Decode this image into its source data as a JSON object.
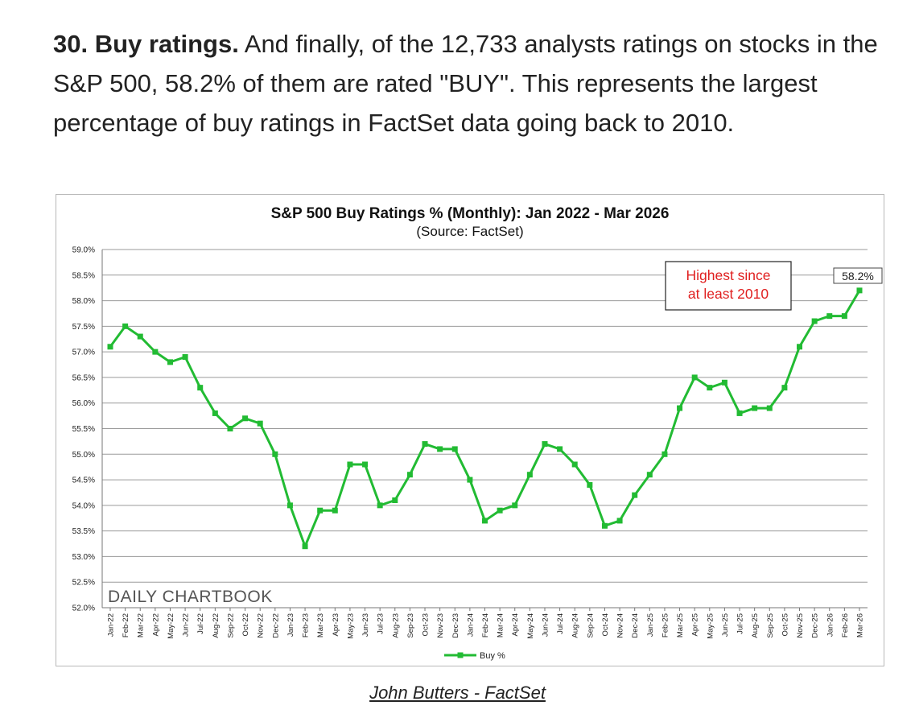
{
  "intro": {
    "bold_lead": "30. Buy ratings.",
    "text": " And finally, of the 12,733 analysts ratings on stocks in the S&P 500, 58.2% of them are rated \"BUY\". This represents the largest percentage of buy ratings in FactSet data going back to 2010."
  },
  "chart_data": {
    "type": "line",
    "title": "S&P 500 Buy Ratings % (Monthly): Jan 2022 - Mar 2026",
    "subtitle": "(Source: FactSet)",
    "watermark": "DAILY CHARTBOOK",
    "ylim": [
      52.0,
      59.0
    ],
    "y_ticks": [
      "52.0%",
      "52.5%",
      "53.0%",
      "53.5%",
      "54.0%",
      "54.5%",
      "55.0%",
      "55.5%",
      "56.0%",
      "56.5%",
      "57.0%",
      "57.5%",
      "58.0%",
      "58.5%",
      "59.0%"
    ],
    "grid": true,
    "legend_position": "bottom",
    "series_color": "#22bb33",
    "categories": [
      "Jan-22",
      "Feb-22",
      "Mar-22",
      "Apr-22",
      "May-22",
      "Jun-22",
      "Jul-22",
      "Aug-22",
      "Sep-22",
      "Oct-22",
      "Nov-22",
      "Dec-22",
      "Jan-23",
      "Feb-23",
      "Mar-23",
      "Apr-23",
      "May-23",
      "Jun-23",
      "Jul-23",
      "Aug-23",
      "Sep-23",
      "Oct-23",
      "Nov-23",
      "Dec-23",
      "Jan-24",
      "Feb-24",
      "Mar-24",
      "Apr-24",
      "May-24",
      "Jun-24",
      "Jul-24",
      "Aug-24",
      "Sep-24",
      "Oct-24",
      "Nov-24",
      "Dec-24",
      "Jan-25",
      "Feb-25",
      "Mar-25",
      "Apr-25",
      "May-25",
      "Jun-25",
      "Jul-25",
      "Aug-25",
      "Sep-25",
      "Oct-25",
      "Nov-25",
      "Dec-25",
      "Jan-26",
      "Feb-26",
      "Mar-26"
    ],
    "series": [
      {
        "name": "Buy %",
        "values": [
          57.1,
          57.5,
          57.3,
          57.0,
          56.8,
          56.9,
          56.3,
          55.8,
          55.5,
          55.7,
          55.6,
          55.0,
          54.0,
          53.2,
          53.9,
          53.9,
          54.8,
          54.8,
          54.0,
          54.1,
          54.6,
          55.2,
          55.1,
          55.1,
          54.5,
          53.7,
          53.9,
          54.0,
          54.6,
          55.2,
          55.1,
          54.8,
          54.4,
          53.6,
          53.7,
          54.2,
          54.6,
          55.0,
          55.9,
          56.5,
          56.3,
          56.4,
          55.8,
          55.9,
          55.9,
          56.3,
          57.1,
          57.6,
          57.7,
          57.7,
          58.2
        ]
      }
    ],
    "annotations": [
      {
        "text_line1": "Highest since",
        "text_line2": "at least 2010",
        "color": "#e02020"
      },
      {
        "text": "58.2%"
      }
    ]
  },
  "credit": "John Butters - FactSet"
}
